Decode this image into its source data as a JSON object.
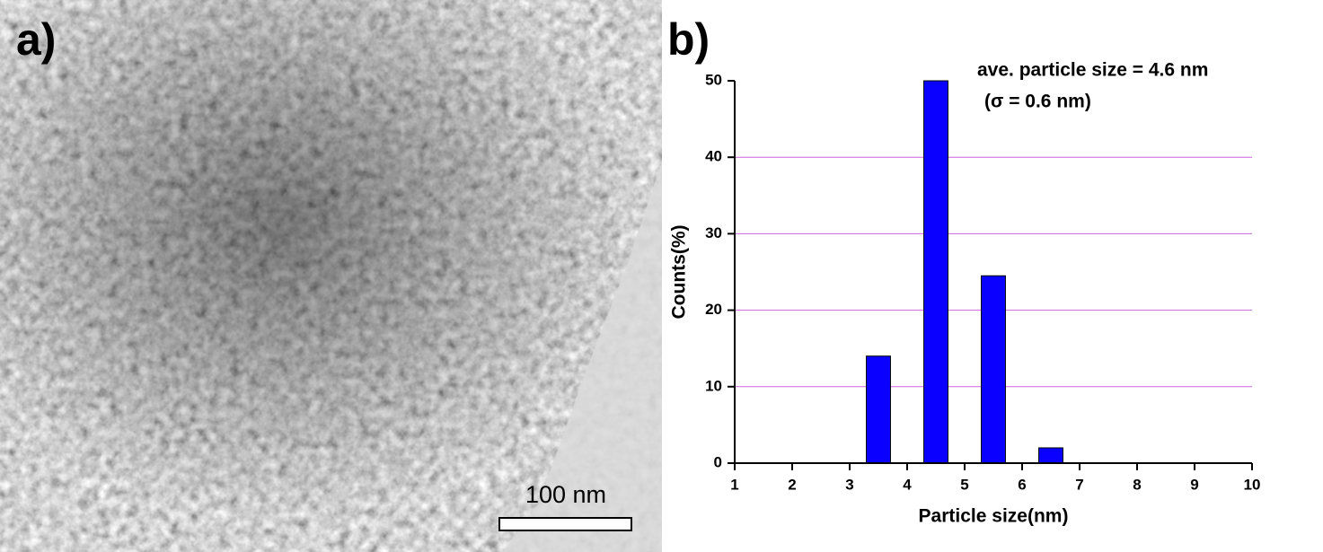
{
  "image_panel": {
    "label": "a)",
    "scale_bar": "100 nm"
  },
  "chart_data": {
    "type": "bar",
    "label": "b)",
    "annotations": [
      "ave. particle size = 4.6 nm",
      "(σ = 0.6 nm)"
    ],
    "x_label": "Particle size(nm)",
    "y_label": "Counts(%)",
    "x": [
      3.5,
      4.5,
      5.5,
      6.5
    ],
    "values": [
      14,
      50,
      24.5,
      2
    ],
    "color": "#0a00ff",
    "xlim": [
      1,
      10
    ],
    "xticks": [
      1,
      2,
      3,
      4,
      5,
      6,
      7,
      8,
      9,
      10
    ],
    "ylim": [
      0,
      50
    ],
    "yticks": [
      0,
      10,
      20,
      30,
      40,
      50
    ],
    "grid": true,
    "grid_color": "#cc66dd"
  }
}
